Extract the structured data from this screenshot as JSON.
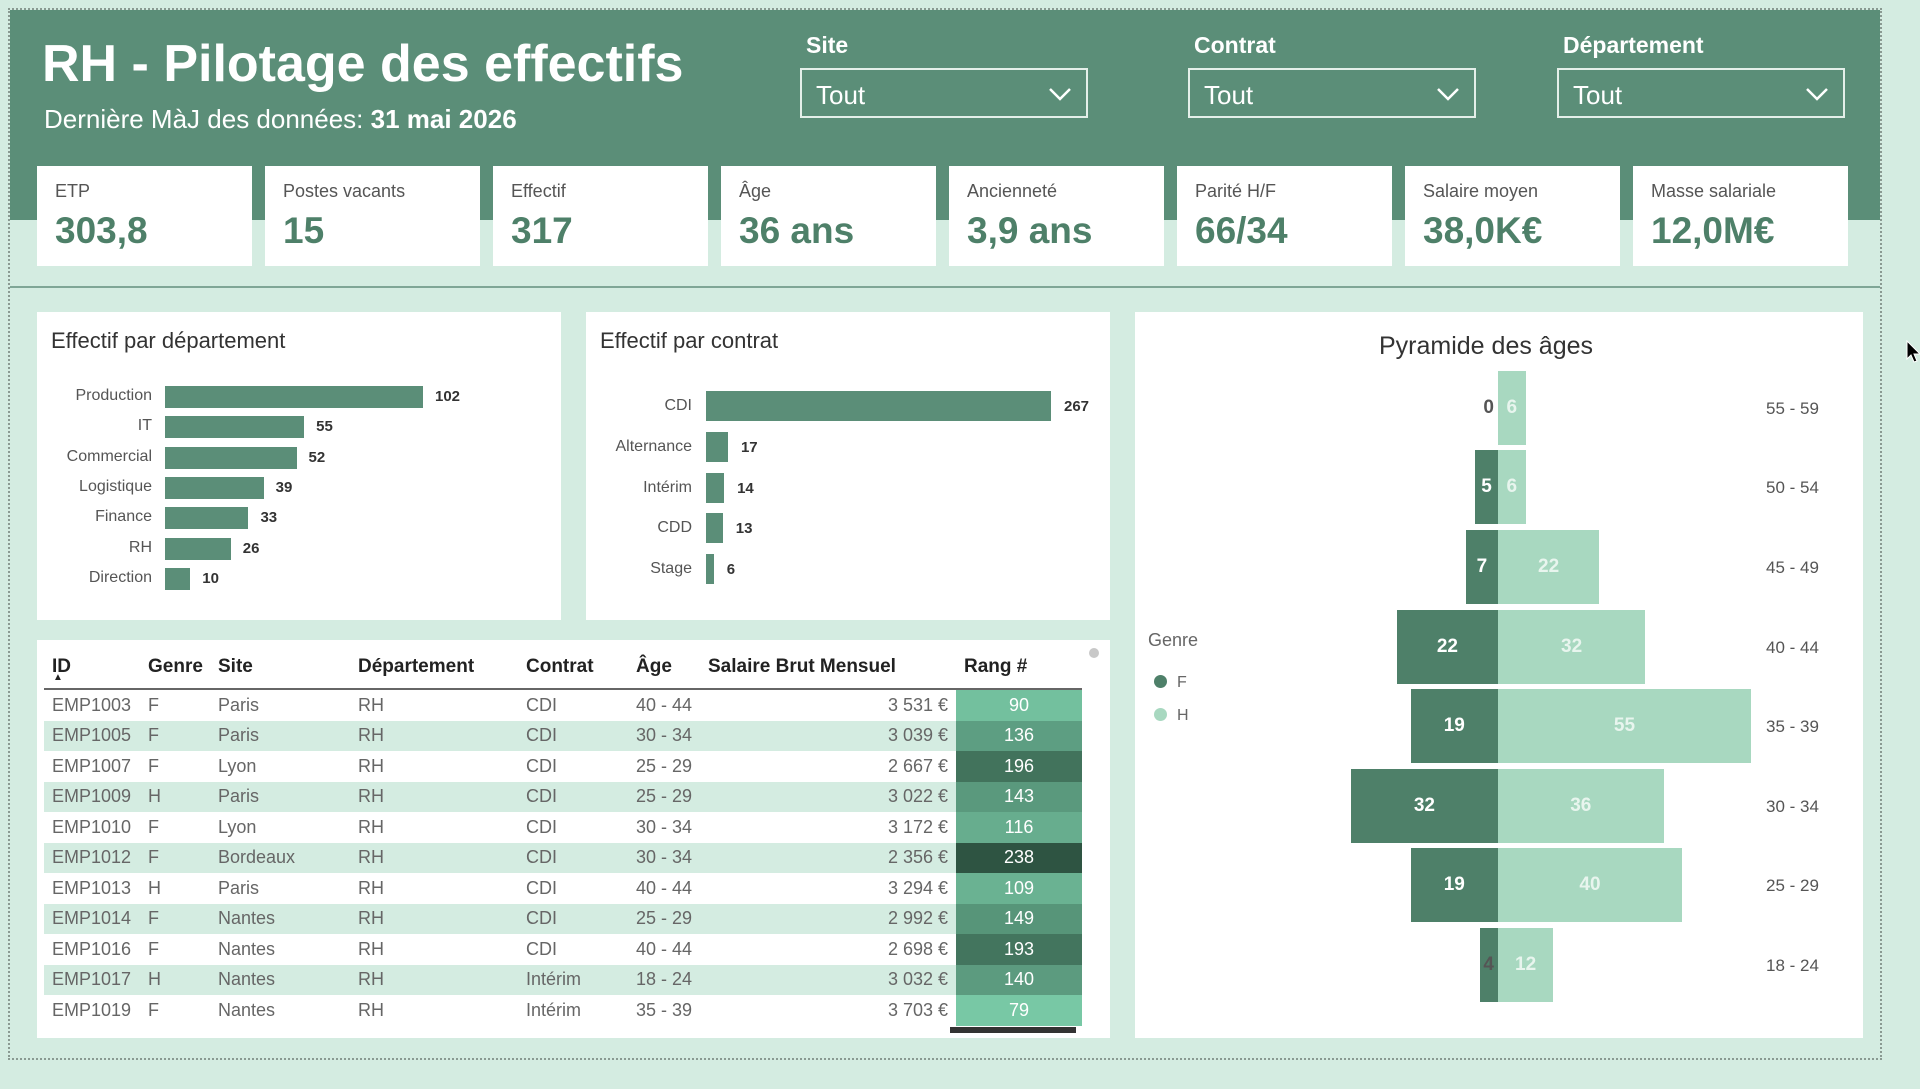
{
  "header": {
    "title": "RH - Pilotage des effectifs",
    "update_label": "Dernière MàJ des données:",
    "update_date": "31 mai 2026"
  },
  "filters": [
    {
      "label": "Site",
      "value": "Tout"
    },
    {
      "label": "Contrat",
      "value": "Tout"
    },
    {
      "label": "Département",
      "value": "Tout"
    }
  ],
  "kpis": [
    {
      "label": "ETP",
      "value": "303,8"
    },
    {
      "label": "Postes vacants",
      "value": "15"
    },
    {
      "label": "Effectif",
      "value": "317"
    },
    {
      "label": "Âge",
      "value": "36 ans"
    },
    {
      "label": "Ancienneté",
      "value": "3,9 ans"
    },
    {
      "label": "Parité H/F",
      "value": "66/34"
    },
    {
      "label": "Salaire moyen",
      "value": "38,0K€"
    },
    {
      "label": "Masse salariale",
      "value": "12,0M€"
    }
  ],
  "colors": {
    "header": "#5b8e78",
    "bar": "#5b8e78",
    "female": "#4e8069",
    "male": "#a8d8c0",
    "background": "#d4ece1"
  },
  "table": {
    "sort_icon": "sort-ascending-icon",
    "headers": [
      "ID",
      "Genre",
      "Site",
      "Département",
      "Contrat",
      "Âge",
      "Salaire Brut Mensuel",
      "Rang #"
    ],
    "rows": [
      [
        "EMP1003",
        "F",
        "Paris",
        "RH",
        "CDI",
        "40 - 44",
        "3 531 €",
        "90"
      ],
      [
        "EMP1005",
        "F",
        "Paris",
        "RH",
        "CDI",
        "30 - 34",
        "3 039 €",
        "136"
      ],
      [
        "EMP1007",
        "F",
        "Lyon",
        "RH",
        "CDI",
        "25 - 29",
        "2 667 €",
        "196"
      ],
      [
        "EMP1009",
        "H",
        "Paris",
        "RH",
        "CDI",
        "25 - 29",
        "3 022 €",
        "143"
      ],
      [
        "EMP1010",
        "F",
        "Lyon",
        "RH",
        "CDI",
        "30 - 34",
        "3 172 €",
        "116"
      ],
      [
        "EMP1012",
        "F",
        "Bordeaux",
        "RH",
        "CDI",
        "30 - 34",
        "2 356 €",
        "238"
      ],
      [
        "EMP1013",
        "H",
        "Paris",
        "RH",
        "CDI",
        "40 - 44",
        "3 294 €",
        "109"
      ],
      [
        "EMP1014",
        "F",
        "Nantes",
        "RH",
        "CDI",
        "25 - 29",
        "2 992 €",
        "149"
      ],
      [
        "EMP1016",
        "F",
        "Nantes",
        "RH",
        "CDI",
        "40 - 44",
        "2 698 €",
        "193"
      ],
      [
        "EMP1017",
        "H",
        "Nantes",
        "RH",
        "Intérim",
        "18 - 24",
        "3 032 €",
        "140"
      ],
      [
        "EMP1019",
        "F",
        "Nantes",
        "RH",
        "Intérim",
        "35 - 39",
        "3 703 €",
        "79"
      ]
    ]
  },
  "chart_data": [
    {
      "type": "bar",
      "title": "Effectif par département",
      "categories": [
        "Production",
        "IT",
        "Commercial",
        "Logistique",
        "Finance",
        "RH",
        "Direction"
      ],
      "values": [
        102,
        55,
        52,
        39,
        33,
        26,
        10
      ]
    },
    {
      "type": "bar",
      "title": "Effectif par contrat",
      "categories": [
        "CDI",
        "Alternance",
        "Intérim",
        "CDD",
        "Stage"
      ],
      "values": [
        267,
        17,
        14,
        13,
        6
      ]
    },
    {
      "type": "bar",
      "title": "Pyramide des âges",
      "legend_title": "Genre",
      "legend_position": "left",
      "categories": [
        "55 - 59",
        "50 - 54",
        "45 - 49",
        "40 - 44",
        "35 - 39",
        "30 - 34",
        "25 - 29",
        "18 - 24"
      ],
      "series": [
        {
          "name": "F",
          "values": [
            0,
            5,
            7,
            22,
            19,
            32,
            19,
            4
          ]
        },
        {
          "name": "H",
          "values": [
            6,
            6,
            22,
            32,
            55,
            36,
            40,
            12
          ]
        }
      ]
    }
  ]
}
